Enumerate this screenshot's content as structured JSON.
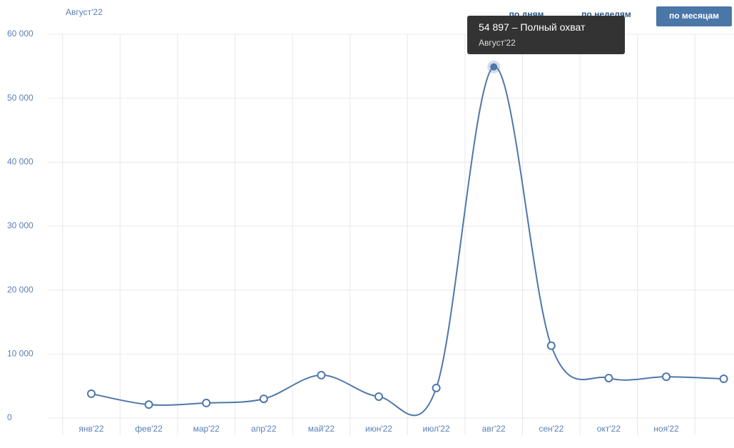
{
  "chart_data": {
    "type": "line",
    "subtitle": "Август'22",
    "buttons": [
      "по дням",
      "по неделям",
      "по месяцам"
    ],
    "categories": [
      "янв'22",
      "фев'22",
      "мар'22",
      "апр'22",
      "май'22",
      "июн'22",
      "июл'22",
      "авг'22",
      "сен'22",
      "окт'22",
      "ноя'22",
      null
    ],
    "series": [
      {
        "name": "Полный охват",
        "color": "#4f77aa",
        "values": [
          3800,
          2100,
          2350,
          3000,
          6700,
          3350,
          4700,
          54897,
          11300,
          6250,
          6450,
          6130
        ]
      }
    ],
    "tooltip": {
      "label": "54 897",
      "period": "Август'22"
    },
    "ylim": [
      0,
      60000
    ],
    "yticks": [
      {
        "value": 0,
        "label": "0"
      },
      {
        "value": 10000,
        "label": "10 000"
      },
      {
        "value": 20000,
        "label": "20 000"
      },
      {
        "value": 30000,
        "label": "30 000"
      },
      {
        "value": 40000,
        "label": "40 000"
      },
      {
        "value": 50000,
        "label": "50 000"
      },
      {
        "value": 60000,
        "label": "60 000"
      }
    ],
    "grid": true
  }
}
